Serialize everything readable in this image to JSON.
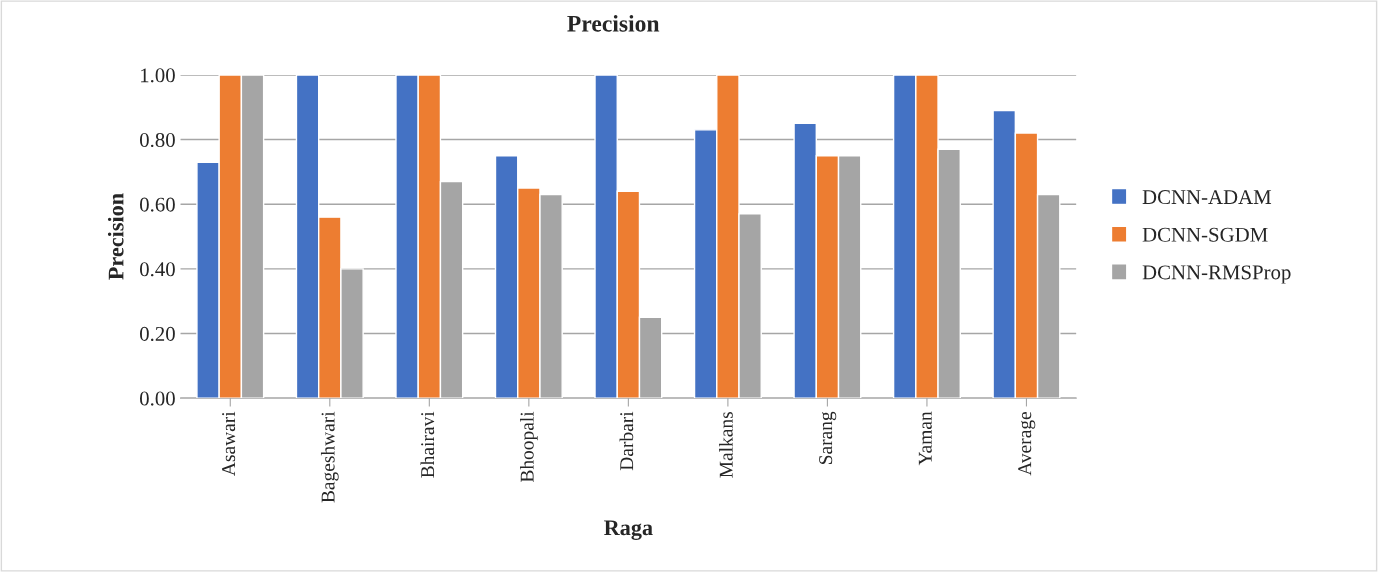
{
  "chart_data": {
    "type": "bar",
    "title": "Precision",
    "xlabel": "Raga",
    "ylabel": "Precision",
    "categories": [
      "Asawari",
      "Bageshwari",
      "Bhairavi",
      "Bhoopali",
      "Darbari",
      "Malkans",
      "Sarang",
      "Yaman",
      "Average"
    ],
    "series": [
      {
        "name": "DCNN-ADAM",
        "color": "#4472c4",
        "values": [
          0.73,
          1.0,
          1.0,
          0.75,
          1.0,
          0.83,
          0.85,
          1.0,
          0.89
        ]
      },
      {
        "name": "DCNN-SGDM",
        "color": "#ed7d31",
        "values": [
          1.0,
          0.56,
          1.0,
          0.65,
          0.64,
          1.0,
          0.75,
          1.0,
          0.82
        ]
      },
      {
        "name": "DCNN-RMSProp",
        "color": "#a5a5a5",
        "values": [
          1.0,
          0.4,
          0.67,
          0.63,
          0.25,
          0.57,
          0.75,
          0.77,
          0.63
        ]
      }
    ],
    "ylim": [
      0,
      1.0
    ],
    "yticks": [
      {
        "value": 0,
        "label": "0.00"
      },
      {
        "value": 0.2,
        "label": "0.20"
      },
      {
        "value": 0.4,
        "label": "0.40"
      },
      {
        "value": 0.6,
        "label": "0.60"
      },
      {
        "value": 0.8,
        "label": "0.80"
      },
      {
        "value": 1.0,
        "label": "1.00"
      }
    ],
    "grid": "y",
    "legend": "right"
  }
}
